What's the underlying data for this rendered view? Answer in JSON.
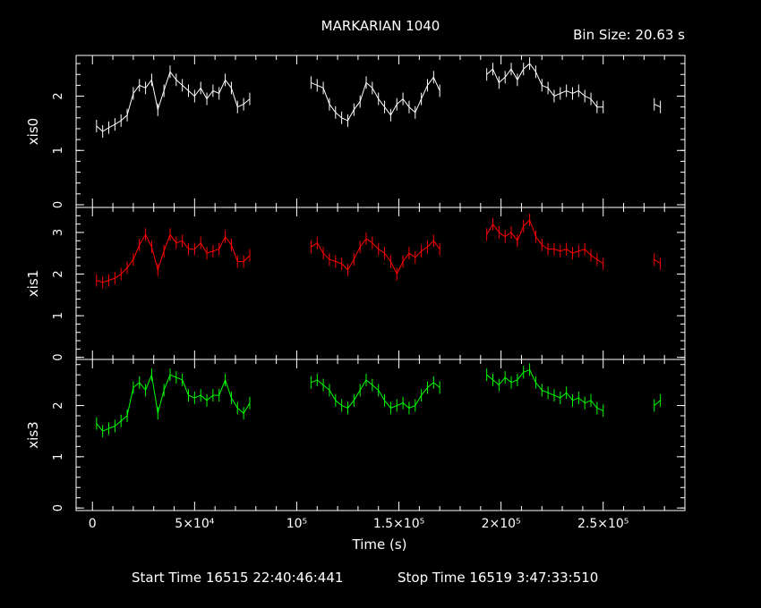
{
  "chart_data": {
    "type": "line",
    "title": "MARKARIAN 1040",
    "bin_size_label": "Bin Size: 20.63 s",
    "xlabel": "Time (s)",
    "xlim": [
      -8000,
      290000
    ],
    "x_ticks": [
      {
        "value": 0,
        "label": "0"
      },
      {
        "value": 50000,
        "label": "5×10⁴"
      },
      {
        "value": 100000,
        "label": "10⁵"
      },
      {
        "value": 150000,
        "label": "1.5×10⁵"
      },
      {
        "value": 200000,
        "label": "2×10⁵"
      },
      {
        "value": 250000,
        "label": "2.5×10⁵"
      }
    ],
    "footer": {
      "start": "Start Time 16515 22:40:46:441",
      "stop": "Stop Time 16519  3:47:33:510"
    },
    "panels": [
      {
        "name": "xis0",
        "color": "#ffffff",
        "ylim": [
          -0.05,
          2.75
        ],
        "yticks": [
          "0",
          "1",
          "2"
        ],
        "ytick_values": [
          0,
          1,
          2
        ],
        "series": [
          {
            "x": [
              2000,
              5000,
              8000,
              11000,
              14000,
              17000,
              20000,
              23000,
              26000,
              29000,
              32000,
              35000,
              38000,
              41000,
              44000,
              47000,
              50000,
              53000,
              56000,
              59000,
              62000,
              65000,
              68000,
              71000,
              74000,
              77000
            ],
            "y": [
              1.45,
              1.35,
              1.42,
              1.48,
              1.55,
              1.65,
              2.05,
              2.2,
              2.15,
              2.3,
              1.75,
              2.1,
              2.45,
              2.3,
              2.2,
              2.1,
              2.0,
              2.15,
              1.95,
              2.1,
              2.05,
              2.3,
              2.15,
              1.8,
              1.85,
              1.95
            ]
          },
          {
            "x": [
              107000,
              110000,
              113000,
              116000,
              119000,
              122000,
              125000,
              128000,
              131000,
              134000,
              137000,
              140000,
              143000,
              146000,
              149000,
              152000,
              155000,
              158000,
              161000,
              164000,
              167000,
              170000
            ],
            "y": [
              2.25,
              2.2,
              2.15,
              1.85,
              1.7,
              1.6,
              1.55,
              1.75,
              1.9,
              2.25,
              2.15,
              1.95,
              1.8,
              1.65,
              1.85,
              1.95,
              1.8,
              1.7,
              1.95,
              2.2,
              2.35,
              2.1
            ]
          },
          {
            "x": [
              193000,
              196000,
              199000,
              202000,
              205000,
              208000,
              211000,
              214000,
              217000,
              220000,
              223000,
              226000,
              229000,
              232000,
              235000,
              238000,
              241000,
              244000,
              247000,
              250000
            ],
            "y": [
              2.4,
              2.5,
              2.25,
              2.35,
              2.5,
              2.3,
              2.5,
              2.6,
              2.45,
              2.2,
              2.15,
              2.0,
              2.05,
              2.1,
              2.05,
              2.1,
              2.0,
              1.95,
              1.8,
              1.8
            ]
          },
          {
            "x": [
              275000,
              278000
            ],
            "y": [
              1.85,
              1.8
            ]
          }
        ]
      },
      {
        "name": "xis1",
        "color": "#ff0000",
        "ylim": [
          -0.05,
          3.6
        ],
        "yticks": [
          "0",
          "1",
          "2",
          "3"
        ],
        "ytick_values": [
          0,
          1,
          2,
          3
        ],
        "series": [
          {
            "x": [
              2000,
              5000,
              8000,
              11000,
              14000,
              17000,
              20000,
              23000,
              26000,
              29000,
              32000,
              35000,
              38000,
              41000,
              44000,
              47000,
              50000,
              53000,
              56000,
              59000,
              62000,
              65000,
              68000,
              71000,
              74000,
              77000
            ],
            "y": [
              1.85,
              1.8,
              1.85,
              1.9,
              2.0,
              2.15,
              2.35,
              2.7,
              2.95,
              2.65,
              2.1,
              2.55,
              2.95,
              2.75,
              2.8,
              2.6,
              2.6,
              2.75,
              2.5,
              2.55,
              2.6,
              2.9,
              2.7,
              2.3,
              2.3,
              2.45
            ]
          },
          {
            "x": [
              107000,
              110000,
              113000,
              116000,
              119000,
              122000,
              125000,
              128000,
              131000,
              134000,
              137000,
              140000,
              143000,
              146000,
              149000,
              152000,
              155000,
              158000,
              161000,
              164000,
              167000,
              170000
            ],
            "y": [
              2.65,
              2.75,
              2.5,
              2.35,
              2.3,
              2.25,
              2.1,
              2.35,
              2.65,
              2.85,
              2.75,
              2.6,
              2.5,
              2.3,
              2.0,
              2.3,
              2.5,
              2.4,
              2.55,
              2.65,
              2.8,
              2.6
            ]
          },
          {
            "x": [
              193000,
              196000,
              199000,
              202000,
              205000,
              208000,
              211000,
              214000,
              217000,
              220000,
              223000,
              226000,
              229000,
              232000,
              235000,
              238000,
              241000,
              244000,
              247000,
              250000
            ],
            "y": [
              2.95,
              3.2,
              3.0,
              2.9,
              3.0,
              2.8,
              3.15,
              3.3,
              2.9,
              2.7,
              2.6,
              2.6,
              2.55,
              2.6,
              2.5,
              2.55,
              2.6,
              2.45,
              2.35,
              2.25
            ]
          },
          {
            "x": [
              275000,
              278000
            ],
            "y": [
              2.35,
              2.25
            ]
          }
        ]
      },
      {
        "name": "xis3",
        "color": "#00ff00",
        "ylim": [
          -0.05,
          2.9
        ],
        "yticks": [
          "0",
          "1",
          "2"
        ],
        "ytick_values": [
          0,
          1,
          2
        ],
        "series": [
          {
            "x": [
              2000,
              5000,
              8000,
              11000,
              14000,
              17000,
              20000,
              23000,
              26000,
              29000,
              32000,
              35000,
              38000,
              41000,
              44000,
              47000,
              50000,
              53000,
              56000,
              59000,
              62000,
              65000,
              68000,
              71000,
              74000,
              77000
            ],
            "y": [
              1.65,
              1.5,
              1.55,
              1.6,
              1.7,
              1.8,
              2.35,
              2.45,
              2.3,
              2.6,
              1.85,
              2.3,
              2.6,
              2.55,
              2.5,
              2.2,
              2.15,
              2.2,
              2.1,
              2.2,
              2.2,
              2.5,
              2.15,
              1.95,
              1.85,
              2.05
            ]
          },
          {
            "x": [
              107000,
              110000,
              113000,
              116000,
              119000,
              122000,
              125000,
              128000,
              131000,
              134000,
              137000,
              140000,
              143000,
              146000,
              149000,
              152000,
              155000,
              158000,
              161000,
              164000,
              167000,
              170000
            ],
            "y": [
              2.45,
              2.5,
              2.4,
              2.3,
              2.1,
              2.0,
              1.95,
              2.1,
              2.3,
              2.5,
              2.4,
              2.3,
              2.1,
              1.95,
              2.0,
              2.05,
              1.95,
              2.0,
              2.2,
              2.35,
              2.45,
              2.35
            ]
          },
          {
            "x": [
              193000,
              196000,
              199000,
              202000,
              205000,
              208000,
              211000,
              214000,
              217000,
              220000,
              223000,
              226000,
              229000,
              232000,
              235000,
              238000,
              241000,
              244000,
              247000,
              250000
            ],
            "y": [
              2.6,
              2.5,
              2.4,
              2.55,
              2.45,
              2.5,
              2.65,
              2.7,
              2.45,
              2.3,
              2.25,
              2.2,
              2.15,
              2.25,
              2.1,
              2.15,
              2.05,
              2.1,
              1.95,
              1.9
            ]
          },
          {
            "x": [
              275000,
              278000
            ],
            "y": [
              2.0,
              2.1
            ]
          }
        ]
      }
    ]
  }
}
